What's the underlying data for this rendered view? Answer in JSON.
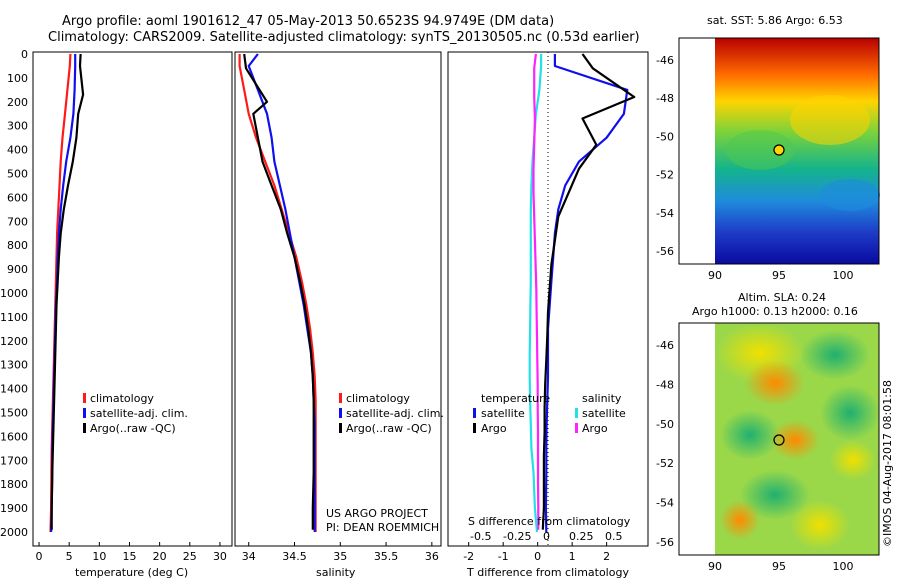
{
  "header": {
    "line1": "Argo profile: aoml 1901612_47 05-May-2013 50.6523S 94.9749E (DM data)",
    "line2": "Climatology: CARS2009. Satellite-adjusted climatology: synTS_20130505.nc (0.53d earlier)"
  },
  "footer_credit": "©IMOS 04-Aug-2017 08:01:58",
  "colors": {
    "climatology": "#ff1a1a",
    "satellite": "#1010ee",
    "argo": "#000000",
    "cyan": "#22e0e8",
    "magenta": "#ff22ff"
  },
  "depth_axis": {
    "ylim": [
      0,
      2050
    ],
    "ticks": [
      "0",
      "100",
      "200",
      "300",
      "400",
      "500",
      "600",
      "700",
      "800",
      "900",
      "1000",
      "1100",
      "1200",
      "1300",
      "1400",
      "1500",
      "1600",
      "1700",
      "1800",
      "1900",
      "2000"
    ]
  },
  "panel_temp": {
    "xlabel": "temperature (deg C)",
    "xticks": [
      "0",
      "5",
      "10",
      "15",
      "20",
      "25",
      "30"
    ],
    "legend": [
      "climatology",
      "satellite-adj. clim.",
      "Argo(..raw -QC)"
    ]
  },
  "panel_sal": {
    "xlabel": "salinity",
    "xticks": [
      "34",
      "34.5",
      "35",
      "35.5",
      "36"
    ],
    "legend": [
      "climatology",
      "satellite-adj. clim.",
      "Argo(..raw -QC)"
    ],
    "project_line1": "US ARGO PROJECT",
    "project_line2": "PI: DEAN ROEMMICH"
  },
  "panel_diff": {
    "xlabel": "T difference from climatology",
    "top_label": "S difference from climatology",
    "t_ticks": [
      "-2",
      "-1",
      "0",
      "1",
      "2"
    ],
    "s_ticks": [
      "-0.5",
      "-0.25",
      "0",
      "0.25",
      "0.5"
    ],
    "legend_temp_title": "temperature",
    "legend_sal_title": "salinity",
    "legend_temp": [
      "satellite",
      "Argo"
    ],
    "legend_sal": [
      "satellite",
      "Argo"
    ]
  },
  "map_sst": {
    "title": "sat. SST: 5.86 Argo: 6.53",
    "xticks": [
      "90",
      "95",
      "100"
    ],
    "yticks": [
      "-46",
      "-48",
      "-50",
      "-52",
      "-54",
      "-56"
    ]
  },
  "map_sla": {
    "title1": "Altim. SLA: 0.24",
    "title2": "Argo h1000: 0.13 h2000: 0.16",
    "xticks": [
      "90",
      "95",
      "100"
    ],
    "yticks": [
      "-46",
      "-48",
      "-50",
      "-52",
      "-54",
      "-56"
    ]
  },
  "chart_data": [
    {
      "type": "line",
      "xlabel": "temperature (deg C)",
      "ylabel": "",
      "xlim": [
        -1,
        32
      ],
      "ylim": [
        2050,
        0
      ],
      "series": [
        {
          "name": "climatology",
          "x": [
            5.2,
            5.1,
            4.7,
            4.3,
            3.9,
            3.6,
            3.4,
            3.2,
            3.0,
            2.9,
            2.8,
            2.7,
            2.6,
            2.5,
            2.4,
            2.3,
            2.2,
            2.1,
            2.05,
            2.0,
            1.9
          ],
          "y": [
            0,
            50,
            150,
            250,
            350,
            450,
            550,
            650,
            750,
            850,
            950,
            1050,
            1150,
            1250,
            1350,
            1450,
            1550,
            1650,
            1750,
            1900,
            2000
          ]
        },
        {
          "name": "satellite-adj. clim.",
          "x": [
            6.0,
            6.0,
            5.9,
            5.7,
            5.2,
            4.5,
            4.0,
            3.6,
            3.3,
            3.1,
            3.0,
            2.8,
            2.7,
            2.6,
            2.5,
            2.4,
            2.3,
            2.2,
            2.2,
            2.1,
            2.0
          ],
          "y": [
            0,
            50,
            150,
            250,
            350,
            450,
            550,
            650,
            750,
            850,
            950,
            1050,
            1150,
            1250,
            1350,
            1450,
            1550,
            1650,
            1750,
            1900,
            2000
          ]
        },
        {
          "name": "Argo(..raw -QC)",
          "x": [
            6.9,
            6.8,
            7.3,
            6.5,
            6.2,
            5.6,
            4.8,
            4.1,
            3.6,
            3.3,
            3.1,
            2.9,
            2.8,
            2.7,
            2.6,
            2.5,
            2.4,
            2.3,
            2.2,
            2.1,
            2.1
          ],
          "y": [
            0,
            50,
            170,
            250,
            350,
            450,
            550,
            650,
            750,
            850,
            950,
            1050,
            1150,
            1250,
            1350,
            1450,
            1550,
            1650,
            1750,
            1900,
            1990
          ]
        }
      ]
    },
    {
      "type": "line",
      "xlabel": "salinity",
      "ylabel": "",
      "xlim": [
        33.85,
        36.1
      ],
      "ylim": [
        2050,
        0
      ],
      "series": [
        {
          "name": "climatology",
          "x": [
            33.9,
            33.9,
            33.95,
            34.0,
            34.08,
            34.18,
            34.28,
            34.36,
            34.44,
            34.52,
            34.58,
            34.63,
            34.67,
            34.7,
            34.72,
            34.73,
            34.73,
            34.73,
            34.73,
            34.73,
            34.73
          ],
          "y": [
            0,
            50,
            150,
            250,
            350,
            450,
            550,
            650,
            750,
            850,
            950,
            1050,
            1150,
            1250,
            1350,
            1450,
            1550,
            1650,
            1750,
            1900,
            2000
          ]
        },
        {
          "name": "satellite-adj. clim.",
          "x": [
            34.1,
            34.0,
            34.1,
            34.2,
            34.25,
            34.28,
            34.34,
            34.4,
            34.45,
            34.5,
            34.55,
            34.6,
            34.64,
            34.68,
            34.7,
            34.71,
            34.72,
            34.72,
            34.72,
            34.72,
            34.72
          ],
          "y": [
            0,
            50,
            150,
            250,
            350,
            450,
            550,
            650,
            750,
            850,
            950,
            1050,
            1150,
            1250,
            1350,
            1450,
            1550,
            1650,
            1750,
            1900,
            2000
          ]
        },
        {
          "name": "Argo(..raw -QC)",
          "x": [
            33.95,
            33.97,
            34.2,
            34.05,
            34.1,
            34.15,
            34.25,
            34.35,
            34.42,
            34.5,
            34.56,
            34.61,
            34.65,
            34.68,
            34.7,
            34.71,
            34.71,
            34.71,
            34.71,
            34.7,
            34.7
          ],
          "y": [
            0,
            60,
            200,
            250,
            350,
            450,
            550,
            650,
            750,
            850,
            950,
            1050,
            1150,
            1250,
            1350,
            1450,
            1550,
            1650,
            1750,
            1900,
            1990
          ]
        }
      ]
    },
    {
      "type": "line",
      "xlabel": "T difference from climatology",
      "ylabel": "",
      "xlim": [
        -2.6,
        3.2
      ],
      "ylim": [
        2050,
        0
      ],
      "series": [
        {
          "name": "temperature satellite",
          "x": [
            0.5,
            0.5,
            2.6,
            2.5,
            2.0,
            1.2,
            0.8,
            0.6,
            0.5,
            0.45,
            0.4,
            0.35,
            0.3,
            0.3,
            0.3,
            0.28,
            0.26,
            0.25,
            0.25,
            0.24,
            0.25
          ],
          "y": [
            0,
            50,
            150,
            250,
            350,
            450,
            550,
            650,
            750,
            850,
            950,
            1050,
            1150,
            1250,
            1350,
            1450,
            1550,
            1650,
            1750,
            1900,
            2000
          ]
        },
        {
          "name": "temperature Argo",
          "x": [
            1.3,
            1.6,
            2.8,
            1.3,
            1.7,
            1.2,
            0.9,
            0.6,
            0.5,
            0.4,
            0.35,
            0.3,
            0.28,
            0.25,
            0.22,
            0.2,
            0.2,
            0.18,
            0.18,
            0.18,
            0.15
          ],
          "y": [
            0,
            60,
            180,
            270,
            380,
            480,
            580,
            680,
            780,
            880,
            980,
            1080,
            1180,
            1280,
            1380,
            1480,
            1580,
            1680,
            1780,
            1900,
            1990
          ]
        },
        {
          "name": "salinity satellite",
          "x": [
            0.1,
            0.1,
            0.05,
            -0.05,
            -0.1,
            -0.15,
            -0.18,
            -0.2,
            -0.2,
            -0.2,
            -0.2,
            -0.21,
            -0.22,
            -0.23,
            -0.23,
            -0.22,
            -0.2,
            -0.18,
            -0.12,
            -0.08,
            -0.02
          ],
          "y": [
            0,
            50,
            150,
            250,
            350,
            450,
            550,
            650,
            750,
            850,
            950,
            1050,
            1150,
            1250,
            1350,
            1450,
            1550,
            1650,
            1750,
            1900,
            2000
          ]
        },
        {
          "name": "salinity Argo",
          "x": [
            -0.05,
            -0.1,
            -0.1,
            -0.08,
            -0.1,
            -0.12,
            -0.12,
            -0.1,
            -0.08,
            -0.06,
            -0.04,
            -0.03,
            -0.02,
            -0.01,
            0,
            0,
            0.01,
            0.01,
            0.01,
            0.02,
            0.02
          ],
          "y": [
            0,
            60,
            180,
            270,
            380,
            480,
            580,
            680,
            780,
            880,
            980,
            1080,
            1180,
            1280,
            1380,
            1480,
            1580,
            1680,
            1780,
            1900,
            1990
          ]
        }
      ]
    }
  ]
}
